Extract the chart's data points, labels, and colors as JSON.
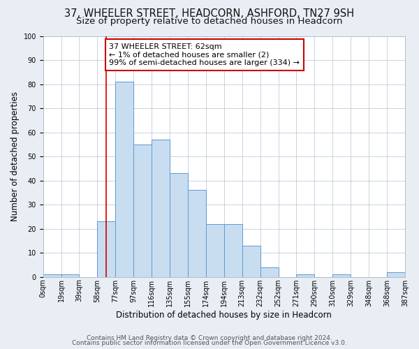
{
  "title_line1": "37, WHEELER STREET, HEADCORN, ASHFORD, TN27 9SH",
  "title_line2": "Size of property relative to detached houses in Headcorn",
  "xlabel": "Distribution of detached houses by size in Headcorn",
  "ylabel": "Number of detached properties",
  "bar_color": "#c9ddf0",
  "bar_edge_color": "#5b9bd5",
  "bin_labels": [
    "0sqm",
    "19sqm",
    "39sqm",
    "58sqm",
    "77sqm",
    "97sqm",
    "116sqm",
    "135sqm",
    "155sqm",
    "174sqm",
    "194sqm",
    "213sqm",
    "232sqm",
    "252sqm",
    "271sqm",
    "290sqm",
    "310sqm",
    "329sqm",
    "348sqm",
    "368sqm",
    "387sqm"
  ],
  "bar_heights": [
    1,
    1,
    0,
    23,
    81,
    55,
    57,
    43,
    36,
    22,
    22,
    13,
    4,
    0,
    1,
    0,
    1,
    0,
    0,
    2
  ],
  "ylim": [
    0,
    100
  ],
  "yticks": [
    0,
    10,
    20,
    30,
    40,
    50,
    60,
    70,
    80,
    90,
    100
  ],
  "vline_bin": 3,
  "vline_color": "#cc0000",
  "annotation_text": "37 WHEELER STREET: 62sqm\n← 1% of detached houses are smaller (2)\n99% of semi-detached houses are larger (334) →",
  "annotation_box_color": "#ffffff",
  "annotation_box_edge": "#cc0000",
  "bg_color": "#e8eef4",
  "plot_bg_color": "#ffffff",
  "footer_line1": "Contains HM Land Registry data © Crown copyright and database right 2024.",
  "footer_line2": "Contains public sector information licensed under the Open Government Licence v3.0.",
  "title_fontsize": 10.5,
  "subtitle_fontsize": 9.5,
  "axis_label_fontsize": 8.5,
  "tick_fontsize": 7,
  "annotation_fontsize": 8,
  "footer_fontsize": 6.5
}
